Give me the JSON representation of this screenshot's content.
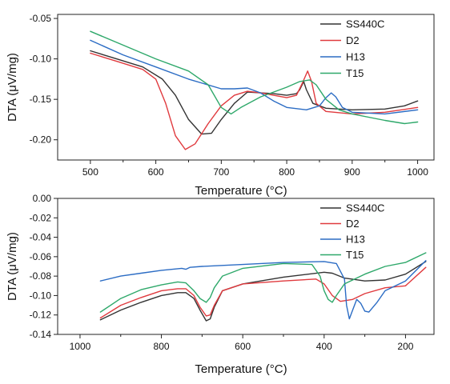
{
  "chart_data": [
    {
      "type": "line",
      "xlabel": "Temperature (°C)",
      "ylabel": "DTA (μV/mg)",
      "xlim": [
        450,
        1025
      ],
      "ylim": [
        -0.225,
        -0.045
      ],
      "xticks": [
        500,
        600,
        700,
        800,
        900,
        1000
      ],
      "xtick_labels": [
        "500",
        "600",
        "700",
        "800",
        "900",
        "1000"
      ],
      "yticks": [
        -0.05,
        -0.1,
        -0.15,
        -0.2
      ],
      "ytick_labels": [
        "-0.05",
        "-0.10",
        "-0.15",
        "-0.20"
      ],
      "legend": "top-right",
      "grid": false,
      "series": [
        {
          "name": "SS440C",
          "color": "#333333",
          "x": [
            500,
            540,
            580,
            610,
            630,
            650,
            670,
            685,
            700,
            720,
            740,
            760,
            780,
            800,
            815,
            820,
            826,
            830,
            840,
            860,
            900,
            950,
            980,
            1000
          ],
          "y": [
            -0.09,
            -0.1,
            -0.11,
            -0.125,
            -0.145,
            -0.175,
            -0.193,
            -0.192,
            -0.175,
            -0.155,
            -0.141,
            -0.142,
            -0.143,
            -0.145,
            -0.143,
            -0.138,
            -0.128,
            -0.138,
            -0.155,
            -0.161,
            -0.163,
            -0.162,
            -0.158,
            -0.152
          ]
        },
        {
          "name": "D2",
          "color": "#e03a3e",
          "x": [
            500,
            540,
            580,
            600,
            615,
            630,
            645,
            660,
            680,
            700,
            720,
            740,
            760,
            780,
            800,
            815,
            825,
            832,
            838,
            845,
            860,
            900,
            950,
            1000
          ],
          "y": [
            -0.093,
            -0.103,
            -0.113,
            -0.125,
            -0.155,
            -0.195,
            -0.212,
            -0.205,
            -0.18,
            -0.158,
            -0.145,
            -0.14,
            -0.142,
            -0.145,
            -0.148,
            -0.145,
            -0.128,
            -0.115,
            -0.128,
            -0.155,
            -0.165,
            -0.168,
            -0.166,
            -0.16
          ]
        },
        {
          "name": "H13",
          "color": "#2b6cc4",
          "x": [
            500,
            550,
            600,
            650,
            700,
            720,
            740,
            760,
            780,
            800,
            830,
            850,
            860,
            868,
            875,
            885,
            900,
            950,
            1000
          ],
          "y": [
            -0.077,
            -0.095,
            -0.11,
            -0.125,
            -0.137,
            -0.137,
            -0.136,
            -0.142,
            -0.152,
            -0.16,
            -0.163,
            -0.158,
            -0.148,
            -0.142,
            -0.147,
            -0.16,
            -0.166,
            -0.168,
            -0.163
          ]
        },
        {
          "name": "T15",
          "color": "#2ea86a",
          "x": [
            500,
            550,
            600,
            650,
            680,
            700,
            715,
            730,
            760,
            800,
            820,
            835,
            845,
            860,
            880,
            900,
            950,
            980,
            1000
          ],
          "y": [
            -0.066,
            -0.083,
            -0.1,
            -0.115,
            -0.132,
            -0.16,
            -0.168,
            -0.16,
            -0.147,
            -0.135,
            -0.128,
            -0.126,
            -0.132,
            -0.15,
            -0.163,
            -0.168,
            -0.176,
            -0.18,
            -0.178
          ]
        }
      ]
    },
    {
      "type": "line",
      "xlabel": "Temperature (°C)",
      "ylabel": "DTA (μV/mg)",
      "xlim": [
        1055,
        130
      ],
      "ylim": [
        -0.14,
        0.0
      ],
      "xticks": [
        1000,
        800,
        600,
        400,
        200
      ],
      "xtick_labels": [
        "1000",
        "800",
        "600",
        "400",
        "200"
      ],
      "yticks": [
        0.0,
        -0.02,
        -0.04,
        -0.06,
        -0.08,
        -0.1,
        -0.12,
        -0.14
      ],
      "ytick_labels": [
        "0.00",
        "-0.02",
        "-0.04",
        "-0.06",
        "-0.08",
        "-0.10",
        "-0.12",
        "-0.14"
      ],
      "legend": "top-right",
      "grid": false,
      "series": [
        {
          "name": "SS440C",
          "color": "#333333",
          "x": [
            950,
            900,
            850,
            800,
            760,
            740,
            720,
            705,
            690,
            680,
            670,
            650,
            600,
            500,
            400,
            380,
            350,
            300,
            250,
            200,
            150
          ],
          "y": [
            -0.125,
            -0.115,
            -0.107,
            -0.1,
            -0.097,
            -0.097,
            -0.103,
            -0.115,
            -0.126,
            -0.124,
            -0.112,
            -0.095,
            -0.088,
            -0.081,
            -0.076,
            -0.077,
            -0.082,
            -0.085,
            -0.084,
            -0.078,
            -0.065
          ]
        },
        {
          "name": "D2",
          "color": "#e03a3e",
          "x": [
            950,
            900,
            850,
            800,
            760,
            740,
            720,
            705,
            690,
            680,
            670,
            650,
            600,
            500,
            420,
            400,
            380,
            360,
            330,
            300,
            250,
            200,
            150
          ],
          "y": [
            -0.123,
            -0.11,
            -0.102,
            -0.095,
            -0.093,
            -0.093,
            -0.1,
            -0.112,
            -0.121,
            -0.12,
            -0.11,
            -0.095,
            -0.088,
            -0.085,
            -0.083,
            -0.088,
            -0.1,
            -0.106,
            -0.104,
            -0.098,
            -0.092,
            -0.09,
            -0.071
          ]
        },
        {
          "name": "H13",
          "color": "#2b6cc4",
          "x": [
            950,
            900,
            850,
            800,
            750,
            740,
            730,
            700,
            600,
            500,
            400,
            370,
            350,
            345,
            338,
            330,
            320,
            310,
            300,
            290,
            270,
            250,
            200,
            150
          ],
          "y": [
            -0.085,
            -0.08,
            -0.077,
            -0.074,
            -0.072,
            -0.073,
            -0.071,
            -0.07,
            -0.068,
            -0.066,
            -0.065,
            -0.067,
            -0.083,
            -0.11,
            -0.124,
            -0.115,
            -0.104,
            -0.108,
            -0.116,
            -0.117,
            -0.107,
            -0.095,
            -0.085,
            -0.064
          ]
        },
        {
          "name": "T15",
          "color": "#2ea86a",
          "x": [
            950,
            900,
            850,
            800,
            760,
            740,
            720,
            705,
            690,
            680,
            670,
            650,
            600,
            500,
            430,
            410,
            400,
            390,
            380,
            370,
            350,
            300,
            250,
            200,
            150
          ],
          "y": [
            -0.117,
            -0.103,
            -0.094,
            -0.089,
            -0.086,
            -0.087,
            -0.095,
            -0.103,
            -0.107,
            -0.102,
            -0.092,
            -0.08,
            -0.072,
            -0.067,
            -0.068,
            -0.08,
            -0.095,
            -0.104,
            -0.107,
            -0.1,
            -0.088,
            -0.078,
            -0.07,
            -0.066,
            -0.056
          ]
        }
      ]
    }
  ]
}
